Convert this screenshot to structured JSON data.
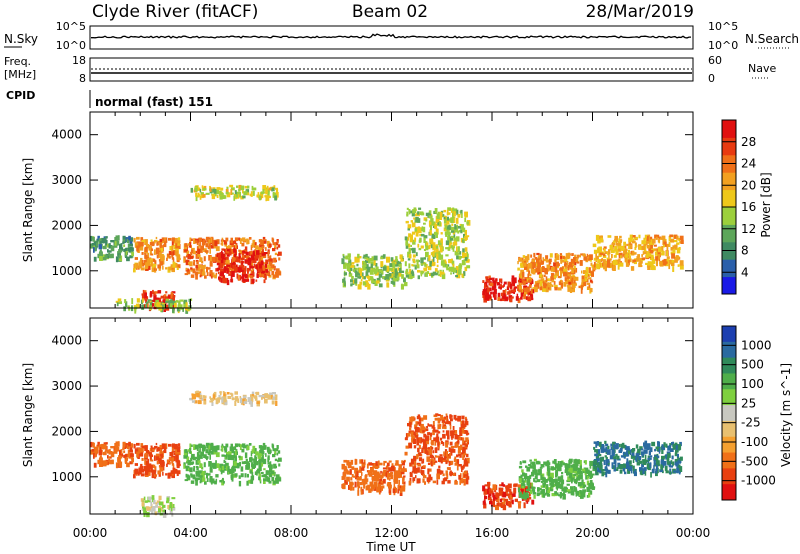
{
  "header": {
    "station": "Clyde River (fitACF)",
    "beam": "Beam 02",
    "date": "28/Mar/2019"
  },
  "top_panels": {
    "nsky_label": "N.Sky",
    "nsky_ticks": [
      "10^5",
      "10^0"
    ],
    "nsearch_label": "N.Search",
    "nsearch_ticks": [
      "10^5",
      "10^0"
    ],
    "freq_label_1": "Freq.",
    "freq_label_2": "[MHz]",
    "freq_ticks": [
      "18",
      "8"
    ],
    "nave_label": "Nave",
    "nave_ticks": [
      "60",
      "0"
    ],
    "cpid_label": "CPID",
    "cpid_text": "normal (fast) 151"
  },
  "colors": {
    "power_scale": [
      "#1a1ae6",
      "#2a5faa",
      "#3f8a62",
      "#5da65a",
      "#9ccf3c",
      "#eec81a",
      "#f2a020",
      "#f07018",
      "#e83a10",
      "#e01010"
    ],
    "velocity_scale": [
      "#1c3fb0",
      "#2a6aa0",
      "#2f8a5a",
      "#4fae4a",
      "#7fd03f",
      "#c8c8c0",
      "#e8c070",
      "#f5a030",
      "#f07018",
      "#e84010",
      "#e01010"
    ]
  },
  "chart_data": [
    {
      "type": "heatmap",
      "name": "power",
      "ylabel": "Slant Range [km]",
      "xlabel": "",
      "ylim": [
        180,
        4500
      ],
      "xlim": [
        "00:00",
        "24:00"
      ],
      "yticks": [
        1000,
        2000,
        3000,
        4000
      ],
      "xticks": [
        "00:00",
        "04:00",
        "08:00",
        "12:00",
        "16:00",
        "20:00",
        "00:00"
      ],
      "colorbar": {
        "label": "Power [dB]",
        "range": [
          0,
          32
        ],
        "ticks": [
          "4",
          "8",
          "12",
          "16",
          "20",
          "24",
          "28"
        ]
      },
      "regions": [
        {
          "t": [
            0.0,
            1.7
          ],
          "r": [
            1300,
            1800
          ],
          "v": 10
        },
        {
          "t": [
            1.7,
            3.5
          ],
          "r": [
            1050,
            1750
          ],
          "v": 22
        },
        {
          "t": [
            3.7,
            7.5
          ],
          "r": [
            900,
            1750
          ],
          "v": 24
        },
        {
          "t": [
            5.0,
            7.0
          ],
          "r": [
            800,
            1500
          ],
          "v": 29
        },
        {
          "t": [
            2.0,
            3.3
          ],
          "r": [
            200,
            600
          ],
          "v": 29
        },
        {
          "t": [
            1.0,
            4.0
          ],
          "r": [
            180,
            400
          ],
          "v": 14
        },
        {
          "t": [
            3.9,
            7.4
          ],
          "r": [
            2650,
            2900
          ],
          "v": 16
        },
        {
          "t": [
            10.0,
            12.5
          ],
          "r": [
            700,
            1400
          ],
          "v": 14
        },
        {
          "t": [
            12.5,
            15.0
          ],
          "r": [
            900,
            2400
          ],
          "v": 15
        },
        {
          "t": [
            15.6,
            17.6
          ],
          "r": [
            380,
            900
          ],
          "v": 29
        },
        {
          "t": [
            17.0,
            20.0
          ],
          "r": [
            600,
            1400
          ],
          "v": 22
        },
        {
          "t": [
            20.0,
            23.5
          ],
          "r": [
            1100,
            1800
          ],
          "v": 20
        }
      ]
    },
    {
      "type": "heatmap",
      "name": "velocity",
      "ylabel": "Slant Range [km]",
      "xlabel": "Time UT",
      "ylim": [
        180,
        4500
      ],
      "xlim": [
        "00:00",
        "24:00"
      ],
      "yticks": [
        1000,
        2000,
        3000,
        4000
      ],
      "xticks": [
        "00:00",
        "04:00",
        "08:00",
        "12:00",
        "16:00",
        "20:00",
        "00:00"
      ],
      "colorbar": {
        "label": "Velocity [m s^-1]",
        "ticks": [
          "1000",
          "500",
          "100",
          "25",
          "-25",
          "-100",
          "-500",
          "-1000"
        ]
      },
      "regions": [
        {
          "t": [
            0.0,
            1.7
          ],
          "r": [
            1300,
            1800
          ],
          "v": -200
        },
        {
          "t": [
            1.7,
            3.5
          ],
          "r": [
            1050,
            1750
          ],
          "v": -300
        },
        {
          "t": [
            3.7,
            7.5
          ],
          "r": [
            900,
            1750
          ],
          "v": 150
        },
        {
          "t": [
            2.0,
            3.3
          ],
          "r": [
            200,
            600
          ],
          "v": 50
        },
        {
          "t": [
            3.9,
            7.4
          ],
          "r": [
            2650,
            2900
          ],
          "v": 0
        },
        {
          "t": [
            10.0,
            12.5
          ],
          "r": [
            700,
            1400
          ],
          "v": -200
        },
        {
          "t": [
            12.5,
            15.0
          ],
          "r": [
            900,
            2400
          ],
          "v": -300
        },
        {
          "t": [
            15.6,
            17.6
          ],
          "r": [
            380,
            900
          ],
          "v": -400
        },
        {
          "t": [
            17.0,
            20.0
          ],
          "r": [
            600,
            1400
          ],
          "v": 150
        },
        {
          "t": [
            20.0,
            23.5
          ],
          "r": [
            1100,
            1800
          ],
          "v": 500
        }
      ]
    }
  ]
}
